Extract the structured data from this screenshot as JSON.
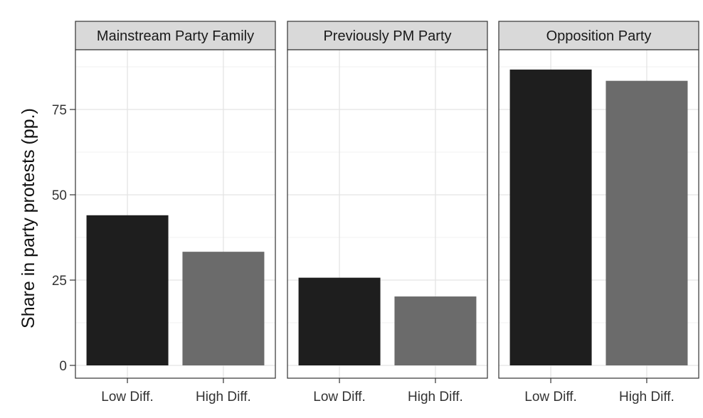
{
  "chart_data": {
    "type": "bar",
    "ylabel": "Share in party protests (pp.)",
    "xlabel": "",
    "ylim": [
      0,
      90
    ],
    "yticks": [
      0,
      25,
      50,
      75
    ],
    "grid": true,
    "categories": [
      "Low Diff.",
      "High Diff."
    ],
    "bar_colors": [
      "#1e1e1e",
      "#6b6b6b"
    ],
    "facets": [
      {
        "label": "Mainstream Party Family",
        "values": [
          44,
          33.3
        ]
      },
      {
        "label": "Previously PM Party",
        "values": [
          25.7,
          20.2
        ]
      },
      {
        "label": "Opposition Party",
        "values": [
          86.7,
          83.4
        ]
      }
    ]
  }
}
